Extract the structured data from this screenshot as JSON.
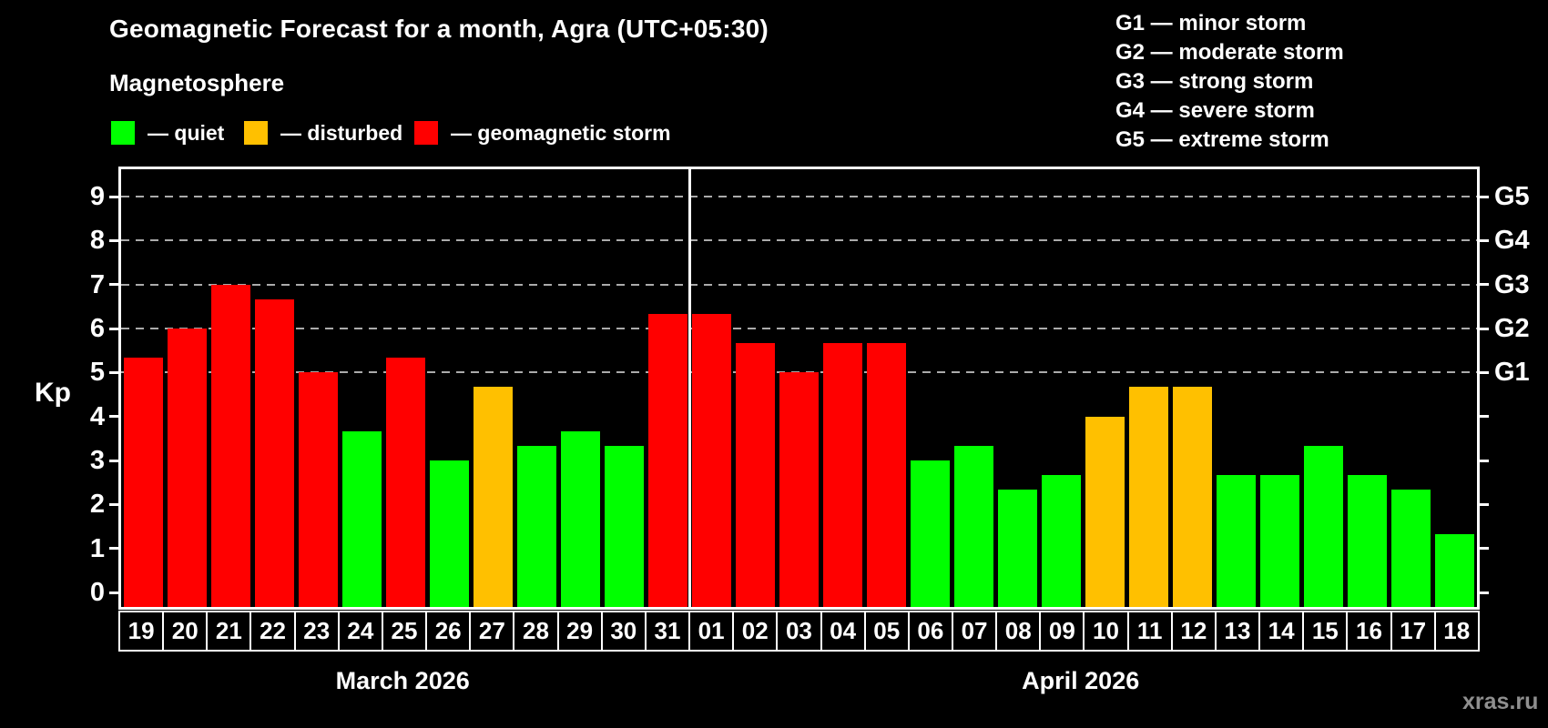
{
  "header": {
    "title": "Geomagnetic Forecast for a month, Agra (UTC+05:30)",
    "subtitle": "Magnetosphere"
  },
  "legend": {
    "items": [
      {
        "status": "quiet",
        "label": "— quiet"
      },
      {
        "status": "disturbed",
        "label": "— disturbed"
      },
      {
        "status": "storm",
        "label": "— geomagnetic storm"
      }
    ]
  },
  "storm_scale_legend": [
    {
      "code": "G1",
      "label": "minor storm"
    },
    {
      "code": "G2",
      "label": "moderate storm"
    },
    {
      "code": "G3",
      "label": "strong storm"
    },
    {
      "code": "G4",
      "label": "severe storm"
    },
    {
      "code": "G5",
      "label": "extreme storm"
    }
  ],
  "colors": {
    "quiet": "#00ff00",
    "disturbed": "#ffc000",
    "storm": "#ff0000",
    "background": "#000000",
    "grid": "#ababab",
    "frame": "#ffffff",
    "watermark": "#8f8f8f"
  },
  "watermark": "xras.ru",
  "chart_data": {
    "type": "bar",
    "title": "Geomagnetic Forecast for a month, Agra (UTC+05:30)",
    "ylabel": "Kp",
    "ylim": [
      0,
      9
    ],
    "yticks": [
      0,
      1,
      2,
      3,
      4,
      5,
      6,
      7,
      8,
      9
    ],
    "gridlines_kp": [
      5,
      6,
      7,
      8,
      9
    ],
    "grid": "dashed, horizontal at Kp 5-9 only",
    "right_axis": [
      {
        "kp": 5,
        "label": "G1"
      },
      {
        "kp": 6,
        "label": "G2"
      },
      {
        "kp": 7,
        "label": "G3"
      },
      {
        "kp": 8,
        "label": "G4"
      },
      {
        "kp": 9,
        "label": "G5"
      }
    ],
    "months": [
      {
        "label": "March 2026",
        "days": 13
      },
      {
        "label": "April 2026",
        "days": 18
      }
    ],
    "days": [
      {
        "date": "19",
        "kp": 5.33,
        "status": "storm"
      },
      {
        "date": "20",
        "kp": 6.0,
        "status": "storm"
      },
      {
        "date": "21",
        "kp": 7.0,
        "status": "storm"
      },
      {
        "date": "22",
        "kp": 6.67,
        "status": "storm"
      },
      {
        "date": "23",
        "kp": 5.0,
        "status": "storm"
      },
      {
        "date": "24",
        "kp": 3.67,
        "status": "quiet"
      },
      {
        "date": "25",
        "kp": 5.33,
        "status": "storm"
      },
      {
        "date": "26",
        "kp": 3.0,
        "status": "quiet"
      },
      {
        "date": "27",
        "kp": 4.67,
        "status": "disturbed"
      },
      {
        "date": "28",
        "kp": 3.33,
        "status": "quiet"
      },
      {
        "date": "29",
        "kp": 3.67,
        "status": "quiet"
      },
      {
        "date": "30",
        "kp": 3.33,
        "status": "quiet"
      },
      {
        "date": "31",
        "kp": 6.33,
        "status": "storm"
      },
      {
        "date": "01",
        "kp": 6.33,
        "status": "storm"
      },
      {
        "date": "02",
        "kp": 5.67,
        "status": "storm"
      },
      {
        "date": "03",
        "kp": 5.0,
        "status": "storm"
      },
      {
        "date": "04",
        "kp": 5.67,
        "status": "storm"
      },
      {
        "date": "05",
        "kp": 5.67,
        "status": "storm"
      },
      {
        "date": "06",
        "kp": 3.0,
        "status": "quiet"
      },
      {
        "date": "07",
        "kp": 3.33,
        "status": "quiet"
      },
      {
        "date": "08",
        "kp": 2.33,
        "status": "quiet"
      },
      {
        "date": "09",
        "kp": 2.67,
        "status": "quiet"
      },
      {
        "date": "10",
        "kp": 4.0,
        "status": "disturbed"
      },
      {
        "date": "11",
        "kp": 4.67,
        "status": "disturbed"
      },
      {
        "date": "12",
        "kp": 4.67,
        "status": "disturbed"
      },
      {
        "date": "13",
        "kp": 2.67,
        "status": "quiet"
      },
      {
        "date": "14",
        "kp": 2.67,
        "status": "quiet"
      },
      {
        "date": "15",
        "kp": 3.33,
        "status": "quiet"
      },
      {
        "date": "16",
        "kp": 2.67,
        "status": "quiet"
      },
      {
        "date": "17",
        "kp": 2.33,
        "status": "quiet"
      },
      {
        "date": "18",
        "kp": 1.33,
        "status": "quiet"
      }
    ]
  }
}
